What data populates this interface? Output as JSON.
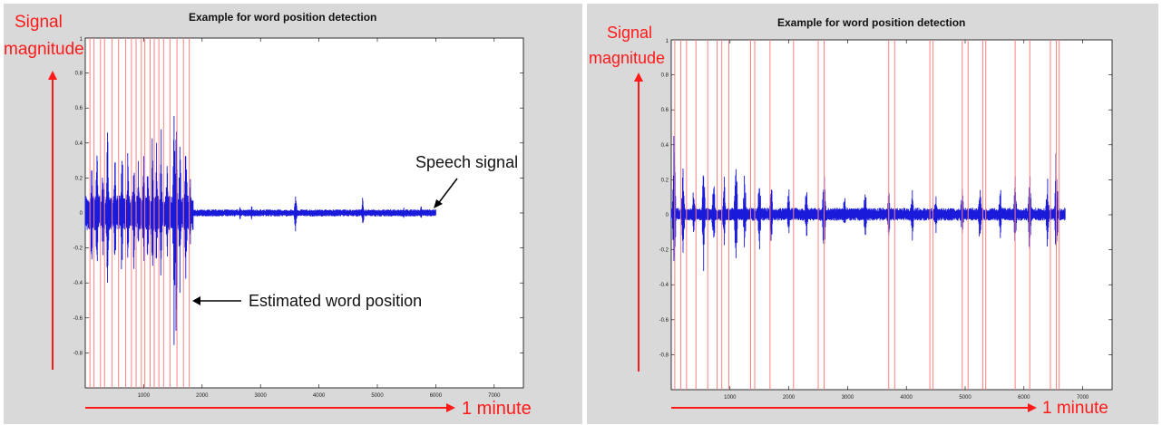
{
  "charts": [
    {
      "title": "Example for word position detection",
      "ylabel_line1": "Signal",
      "ylabel_line2": "magnitude",
      "xlabel": "1 minute",
      "annotations": [
        {
          "text": "Speech signal"
        },
        {
          "text": "Estimated word position"
        }
      ]
    },
    {
      "title": "Example for word position detection",
      "ylabel_line1": "Signal",
      "ylabel_line2": "magnitude",
      "xlabel": "1 minute",
      "annotations": []
    }
  ],
  "colors": {
    "signal": "#1a1adb",
    "marker": "#ff8080",
    "arrow": "#ff1a1a",
    "panel": "#d9d9d9"
  },
  "chart_data": [
    {
      "type": "line",
      "title": "Example for word position detection",
      "xlim": [
        0,
        7500
      ],
      "ylim": [
        -1,
        1
      ],
      "xticks": [
        1000,
        2000,
        3000,
        4000,
        5000,
        6000,
        7000
      ],
      "yticks": [
        -0.8,
        -0.6,
        -0.4,
        -0.2,
        0,
        0.2,
        0.4,
        0.6,
        0.8
      ],
      "signal_end": 6000,
      "word_positions": [
        80,
        150,
        260,
        330,
        460,
        570,
        690,
        790,
        870,
        960,
        1020,
        1110,
        1180,
        1260,
        1340,
        1450,
        1570,
        1680,
        1780
      ],
      "bursts": [
        {
          "x": 110,
          "amp": 0.45
        },
        {
          "x": 200,
          "amp": 0.55
        },
        {
          "x": 300,
          "amp": 0.42
        },
        {
          "x": 380,
          "amp": 0.6
        },
        {
          "x": 510,
          "amp": 0.5
        },
        {
          "x": 630,
          "amp": 0.55
        },
        {
          "x": 730,
          "amp": 0.47
        },
        {
          "x": 830,
          "amp": 0.4
        },
        {
          "x": 910,
          "amp": 0.45
        },
        {
          "x": 1000,
          "amp": 0.5
        },
        {
          "x": 1070,
          "amp": 0.42
        },
        {
          "x": 1150,
          "amp": 0.5
        },
        {
          "x": 1220,
          "amp": 0.45
        },
        {
          "x": 1300,
          "amp": 0.55
        },
        {
          "x": 1400,
          "amp": 0.4
        },
        {
          "x": 1520,
          "amp": 0.98
        },
        {
          "x": 1560,
          "amp": 0.95
        },
        {
          "x": 1620,
          "amp": 0.5
        },
        {
          "x": 1720,
          "amp": 0.65
        },
        {
          "x": 1800,
          "amp": 0.3
        },
        {
          "x": 2650,
          "amp": 0.05
        },
        {
          "x": 2850,
          "amp": 0.05
        },
        {
          "x": 3600,
          "amp": 0.18
        },
        {
          "x": 4750,
          "amp": 0.12
        },
        {
          "x": 5450,
          "amp": 0.05
        },
        {
          "x": 5750,
          "amp": 0.05
        }
      ]
    },
    {
      "type": "line",
      "title": "Example for word position detection",
      "xlim": [
        0,
        7500
      ],
      "ylim": [
        -1,
        1
      ],
      "xticks": [
        1000,
        2000,
        3000,
        4000,
        5000,
        6000,
        7000
      ],
      "yticks": [
        -0.8,
        -0.6,
        -0.4,
        -0.2,
        0,
        0.2,
        0.4,
        0.6,
        0.8
      ],
      "signal_end": 6700,
      "word_positions": [
        60,
        160,
        260,
        420,
        620,
        780,
        860,
        980,
        1350,
        1420,
        1680,
        2080,
        2500,
        2600,
        3700,
        3800,
        4400,
        4450,
        4950,
        5050,
        5300,
        5350,
        5850,
        6100,
        6450,
        6550,
        6600
      ],
      "bursts": [
        {
          "x": 50,
          "amp": 0.65
        },
        {
          "x": 200,
          "amp": 0.35
        },
        {
          "x": 380,
          "amp": 0.2
        },
        {
          "x": 550,
          "amp": 0.4
        },
        {
          "x": 720,
          "amp": 0.3
        },
        {
          "x": 900,
          "amp": 0.28
        },
        {
          "x": 1100,
          "amp": 0.45
        },
        {
          "x": 1250,
          "amp": 0.3
        },
        {
          "x": 1500,
          "amp": 0.3
        },
        {
          "x": 1700,
          "amp": 0.25
        },
        {
          "x": 2000,
          "amp": 0.2
        },
        {
          "x": 2300,
          "amp": 0.22
        },
        {
          "x": 2600,
          "amp": 0.4
        },
        {
          "x": 2950,
          "amp": 0.15
        },
        {
          "x": 3300,
          "amp": 0.2
        },
        {
          "x": 3700,
          "amp": 0.22
        },
        {
          "x": 4100,
          "amp": 0.2
        },
        {
          "x": 4500,
          "amp": 0.15
        },
        {
          "x": 4950,
          "amp": 0.25
        },
        {
          "x": 5250,
          "amp": 0.22
        },
        {
          "x": 5600,
          "amp": 0.2
        },
        {
          "x": 5850,
          "amp": 0.3
        },
        {
          "x": 6100,
          "amp": 0.35
        },
        {
          "x": 6400,
          "amp": 0.3
        },
        {
          "x": 6550,
          "amp": 0.45
        }
      ]
    }
  ]
}
